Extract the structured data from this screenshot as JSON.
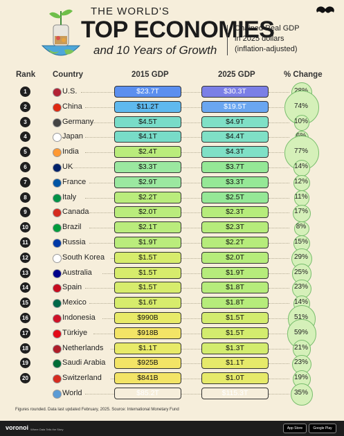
{
  "header": {
    "title_line1": "THE WORLD'S",
    "title_line2": "TOP ECONOMIES",
    "title_line3": "and 10 Years of Growth",
    "note_line1": "Chained Real GDP",
    "note_line2": "in 2025 dollars",
    "note_line3": "(inflation-adjusted)"
  },
  "columns": {
    "rank": "Rank",
    "country": "Country",
    "gdp2015": "2015 GDP",
    "gdp2025": "2025 GDP",
    "change": "% Change"
  },
  "chart_data": {
    "type": "table",
    "title": "THE WORLD'S TOP ECONOMIES and 10 Years of Growth",
    "subtitle": "Chained Real GDP in 2025 dollars (inflation-adjusted)",
    "rows": [
      {
        "rank": "1",
        "country": "U.S.",
        "gdp2015": "$23.7T",
        "gdp2025": "$30.3T",
        "change": "28%",
        "v2015": 23.7,
        "v2025": 30.3,
        "pct": 28
      },
      {
        "rank": "2",
        "country": "China",
        "gdp2015": "$11.2T",
        "gdp2025": "$19.5T",
        "change": "74%",
        "v2015": 11.2,
        "v2025": 19.5,
        "pct": 74
      },
      {
        "rank": "3",
        "country": "Germany",
        "gdp2015": "$4.5T",
        "gdp2025": "$4.9T",
        "change": "10%",
        "v2015": 4.5,
        "v2025": 4.9,
        "pct": 10
      },
      {
        "rank": "4",
        "country": "Japan",
        "gdp2015": "$4.1T",
        "gdp2025": "$4.4T",
        "change": "6%",
        "v2015": 4.1,
        "v2025": 4.4,
        "pct": 6
      },
      {
        "rank": "5",
        "country": "India",
        "gdp2015": "$2.4T",
        "gdp2025": "$4.3T",
        "change": "77%",
        "v2015": 2.4,
        "v2025": 4.3,
        "pct": 77
      },
      {
        "rank": "6",
        "country": "UK",
        "gdp2015": "$3.3T",
        "gdp2025": "$3.7T",
        "change": "14%",
        "v2015": 3.3,
        "v2025": 3.7,
        "pct": 14
      },
      {
        "rank": "7",
        "country": "France",
        "gdp2015": "$2.9T",
        "gdp2025": "$3.3T",
        "change": "12%",
        "v2015": 2.9,
        "v2025": 3.3,
        "pct": 12
      },
      {
        "rank": "8",
        "country": "Italy",
        "gdp2015": "$2.2T",
        "gdp2025": "$2.5T",
        "change": "11%",
        "v2015": 2.2,
        "v2025": 2.5,
        "pct": 11
      },
      {
        "rank": "9",
        "country": "Canada",
        "gdp2015": "$2.0T",
        "gdp2025": "$2.3T",
        "change": "17%",
        "v2015": 2.0,
        "v2025": 2.3,
        "pct": 17
      },
      {
        "rank": "10",
        "country": "Brazil",
        "gdp2015": "$2.1T",
        "gdp2025": "$2.3T",
        "change": "8%",
        "v2015": 2.1,
        "v2025": 2.3,
        "pct": 8
      },
      {
        "rank": "11",
        "country": "Russia",
        "gdp2015": "$1.9T",
        "gdp2025": "$2.2T",
        "change": "15%",
        "v2015": 1.9,
        "v2025": 2.2,
        "pct": 15
      },
      {
        "rank": "12",
        "country": "South Korea",
        "gdp2015": "$1.5T",
        "gdp2025": "$2.0T",
        "change": "29%",
        "v2015": 1.5,
        "v2025": 2.0,
        "pct": 29
      },
      {
        "rank": "13",
        "country": "Australia",
        "gdp2015": "$1.5T",
        "gdp2025": "$1.9T",
        "change": "25%",
        "v2015": 1.5,
        "v2025": 1.9,
        "pct": 25
      },
      {
        "rank": "14",
        "country": "Spain",
        "gdp2015": "$1.5T",
        "gdp2025": "$1.8T",
        "change": "23%",
        "v2015": 1.5,
        "v2025": 1.8,
        "pct": 23
      },
      {
        "rank": "15",
        "country": "Mexico",
        "gdp2015": "$1.6T",
        "gdp2025": "$1.8T",
        "change": "14%",
        "v2015": 1.6,
        "v2025": 1.8,
        "pct": 14
      },
      {
        "rank": "16",
        "country": "Indonesia",
        "gdp2015": "$990B",
        "gdp2025": "$1.5T",
        "change": "51%",
        "v2015": 0.99,
        "v2025": 1.5,
        "pct": 51
      },
      {
        "rank": "17",
        "country": "Türkiye",
        "gdp2015": "$918B",
        "gdp2025": "$1.5T",
        "change": "59%",
        "v2015": 0.918,
        "v2025": 1.5,
        "pct": 59
      },
      {
        "rank": "18",
        "country": "Netherlands",
        "gdp2015": "$1.1T",
        "gdp2025": "$1.3T",
        "change": "21%",
        "v2015": 1.1,
        "v2025": 1.3,
        "pct": 21
      },
      {
        "rank": "19",
        "country": "Saudi Arabia",
        "gdp2015": "$925B",
        "gdp2025": "$1.1T",
        "change": "23%",
        "v2015": 0.925,
        "v2025": 1.1,
        "pct": 23
      },
      {
        "rank": "20",
        "country": "Switzerland",
        "gdp2015": "$841B",
        "gdp2025": "$1.0T",
        "change": "19%",
        "v2015": 0.841,
        "v2025": 1.0,
        "pct": 19
      },
      {
        "rank": "",
        "country": "World",
        "gdp2015": "$85.2T",
        "gdp2025": "$115.3T",
        "change": "35%",
        "v2015": 85.2,
        "v2025": 115.3,
        "pct": 35
      }
    ]
  },
  "footnote": "Figures rounded. Data last updated February, 2025. Source: International Monetary Fund",
  "footer": {
    "brand": "voronoi",
    "tagline": "Where Data Tells the Story",
    "app_store": "App Store",
    "google_play": "Google Play"
  }
}
